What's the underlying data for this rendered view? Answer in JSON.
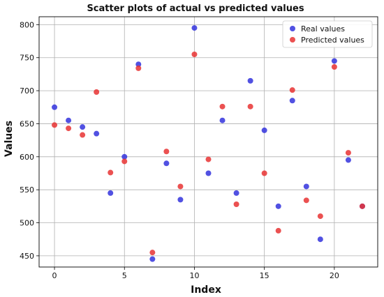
{
  "chart_data": {
    "type": "scatter",
    "title": "Scatter plots of actual vs predicted values",
    "xlabel": "Index",
    "ylabel": "Values",
    "xlim": [
      -1.1,
      23.1
    ],
    "ylim": [
      433,
      812
    ],
    "xticks": [
      0,
      5,
      10,
      15,
      20
    ],
    "yticks": [
      450,
      500,
      550,
      600,
      650,
      700,
      750,
      800
    ],
    "grid": true,
    "legend_position": "top-right",
    "x": [
      0,
      1,
      2,
      3,
      4,
      5,
      6,
      7,
      8,
      9,
      10,
      11,
      12,
      13,
      14,
      15,
      16,
      17,
      18,
      19,
      20,
      21,
      22
    ],
    "series": [
      {
        "name": "Real values",
        "color": "#3333dd",
        "values": [
          675,
          655,
          645,
          635,
          545,
          600,
          740,
          445,
          590,
          535,
          795,
          575,
          655,
          545,
          715,
          640,
          525,
          685,
          555,
          475,
          745,
          595,
          525
        ]
      },
      {
        "name": "Predicted values",
        "color": "#e83333",
        "values": [
          648,
          643,
          633,
          698,
          576,
          593,
          734,
          455,
          608,
          555,
          755,
          596,
          676,
          528,
          676,
          575,
          488,
          701,
          534,
          510,
          736,
          606,
          525
        ]
      }
    ]
  }
}
